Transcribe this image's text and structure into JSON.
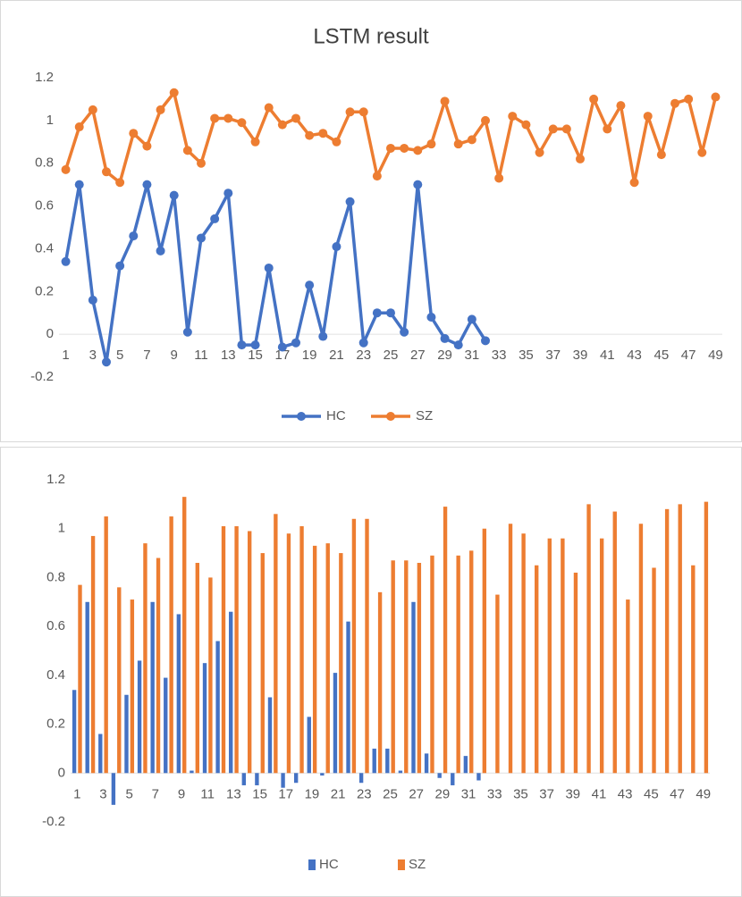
{
  "chart_data": [
    {
      "type": "line",
      "title": "LSTM result",
      "categories": [
        1,
        null,
        3,
        null,
        5,
        null,
        7,
        null,
        9,
        null,
        11,
        null,
        13,
        null,
        15,
        null,
        17,
        null,
        19,
        null,
        21,
        null,
        23,
        null,
        25,
        null,
        27,
        null,
        29,
        null,
        31,
        null,
        33,
        null,
        35,
        null,
        37,
        null,
        39,
        null,
        41,
        null,
        43,
        null,
        45,
        null,
        47,
        null,
        49
      ],
      "series": [
        {
          "name": "HC",
          "color": "#4472c4",
          "values": [
            0.34,
            0.7,
            0.16,
            -0.13,
            0.32,
            0.46,
            0.7,
            0.39,
            0.65,
            0.01,
            0.45,
            0.54,
            0.66,
            -0.05,
            -0.05,
            0.31,
            -0.06,
            -0.04,
            0.23,
            -0.01,
            0.41,
            0.62,
            -0.04,
            0.1,
            0.1,
            0.01,
            0.7,
            0.08,
            -0.02,
            -0.05,
            0.07,
            -0.03,
            null,
            null,
            null,
            null,
            null,
            null,
            null,
            null,
            null,
            null,
            null,
            null,
            null,
            null,
            null,
            null,
            null
          ]
        },
        {
          "name": "SZ",
          "color": "#ed7d31",
          "values": [
            0.77,
            0.97,
            1.05,
            0.76,
            0.71,
            0.94,
            0.88,
            1.05,
            1.13,
            0.86,
            0.8,
            1.01,
            1.01,
            0.99,
            0.9,
            1.06,
            0.98,
            1.01,
            0.93,
            0.94,
            0.9,
            1.04,
            1.04,
            0.74,
            0.87,
            0.87,
            0.86,
            0.89,
            1.09,
            0.89,
            0.91,
            1.0,
            0.73,
            1.02,
            0.98,
            0.85,
            0.96,
            0.96,
            0.82,
            1.1,
            0.96,
            1.07,
            0.71,
            1.02,
            0.84,
            1.08,
            1.1,
            0.85,
            1.11
          ]
        }
      ],
      "ylim": [
        -0.2,
        1.2
      ],
      "yticks": [
        -0.2,
        0,
        0.2,
        0.4,
        0.6,
        0.8,
        1,
        1.2
      ],
      "grid": false,
      "legend": "bottom"
    },
    {
      "type": "bar",
      "categories": [
        1,
        null,
        3,
        null,
        5,
        null,
        7,
        null,
        9,
        null,
        11,
        null,
        13,
        null,
        15,
        null,
        17,
        null,
        19,
        null,
        21,
        null,
        23,
        null,
        25,
        null,
        27,
        null,
        29,
        null,
        31,
        null,
        33,
        null,
        35,
        null,
        37,
        null,
        39,
        null,
        41,
        null,
        43,
        null,
        45,
        null,
        47,
        null,
        49
      ],
      "series": [
        {
          "name": "HC",
          "color": "#4472c4",
          "values": [
            0.34,
            0.7,
            0.16,
            -0.13,
            0.32,
            0.46,
            0.7,
            0.39,
            0.65,
            0.01,
            0.45,
            0.54,
            0.66,
            -0.05,
            -0.05,
            0.31,
            -0.06,
            -0.04,
            0.23,
            -0.01,
            0.41,
            0.62,
            -0.04,
            0.1,
            0.1,
            0.01,
            0.7,
            0.08,
            -0.02,
            -0.05,
            0.07,
            -0.03,
            null,
            null,
            null,
            null,
            null,
            null,
            null,
            null,
            null,
            null,
            null,
            null,
            null,
            null,
            null,
            null,
            null
          ]
        },
        {
          "name": "SZ",
          "color": "#ed7d31",
          "values": [
            0.77,
            0.97,
            1.05,
            0.76,
            0.71,
            0.94,
            0.88,
            1.05,
            1.13,
            0.86,
            0.8,
            1.01,
            1.01,
            0.99,
            0.9,
            1.06,
            0.98,
            1.01,
            0.93,
            0.94,
            0.9,
            1.04,
            1.04,
            0.74,
            0.87,
            0.87,
            0.86,
            0.89,
            1.09,
            0.89,
            0.91,
            1.0,
            0.73,
            1.02,
            0.98,
            0.85,
            0.96,
            0.96,
            0.82,
            1.1,
            0.96,
            1.07,
            0.71,
            1.02,
            0.84,
            1.08,
            1.1,
            0.85,
            1.11
          ]
        }
      ],
      "ylim": [
        -0.2,
        1.2
      ],
      "yticks": [
        -0.2,
        0,
        0.2,
        0.4,
        0.6,
        0.8,
        1,
        1.2
      ],
      "grid": false,
      "legend": "bottom"
    }
  ]
}
